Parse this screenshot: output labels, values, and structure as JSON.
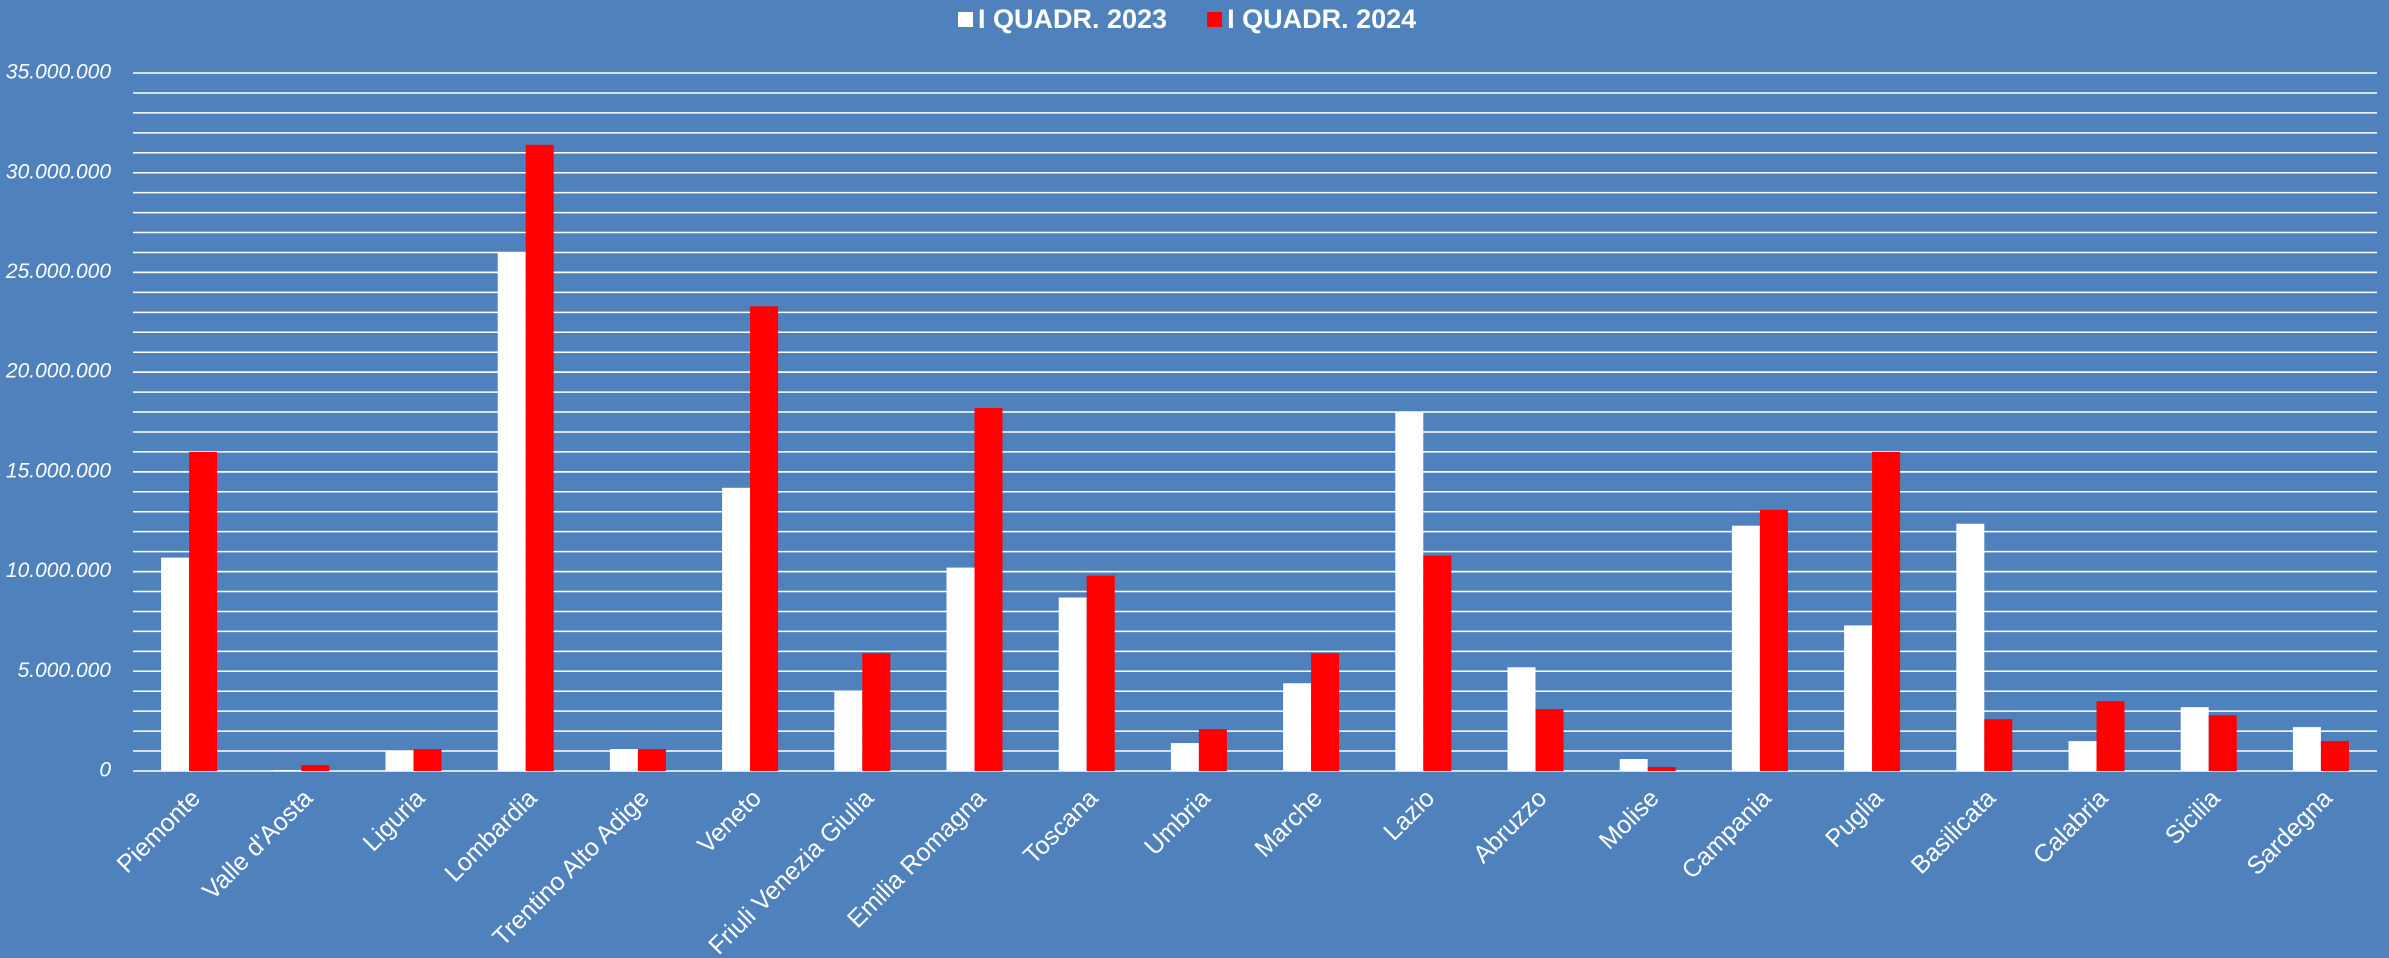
{
  "chart_data": {
    "type": "bar",
    "categories": [
      "Piemonte",
      "Valle d'Aosta",
      "Liguria",
      "Lombardia",
      "Trentino Alto Adige",
      "Veneto",
      "Friuli Venezia Giulia",
      "Emilia Romagna",
      "Toscana",
      "Umbria",
      "Marche",
      "Lazio",
      "Abruzzo",
      "Molise",
      "Campania",
      "Puglia",
      "Basilicata",
      "Calabria",
      "Sicilia",
      "Sardegna"
    ],
    "series": [
      {
        "name": "I QUADR. 2023",
        "color": "#ffffff",
        "values": [
          10700000,
          50000,
          1000000,
          26000000,
          1100000,
          14200000,
          4000000,
          10200000,
          8700000,
          1400000,
          4400000,
          18000000,
          5200000,
          600000,
          12300000,
          7300000,
          12400000,
          1500000,
          3200000,
          2200000
        ]
      },
      {
        "name": "I QUADR. 2024",
        "color": "#ff0000",
        "values": [
          16000000,
          300000,
          1100000,
          31400000,
          1100000,
          23300000,
          5900000,
          18200000,
          9800000,
          2100000,
          5900000,
          10800000,
          3100000,
          200000,
          13100000,
          16000000,
          2600000,
          3500000,
          2800000,
          1500000
        ]
      }
    ],
    "ylim": [
      0,
      35000000
    ],
    "yticks": [
      0,
      {
        "value": 5000000,
        "label": "5.000.000"
      },
      {
        "value": 10000000,
        "label": "10.000.000"
      },
      {
        "value": 15000000,
        "label": "15.000.000"
      },
      {
        "value": 20000000,
        "label": "20.000.000"
      },
      {
        "value": 25000000,
        "label": "25.000.000"
      },
      {
        "value": 30000000,
        "label": "30.000.000"
      },
      {
        "value": 35000000,
        "label": "35.000.000"
      }
    ],
    "grid": true,
    "grid_step": 1000000,
    "legend": "top"
  }
}
